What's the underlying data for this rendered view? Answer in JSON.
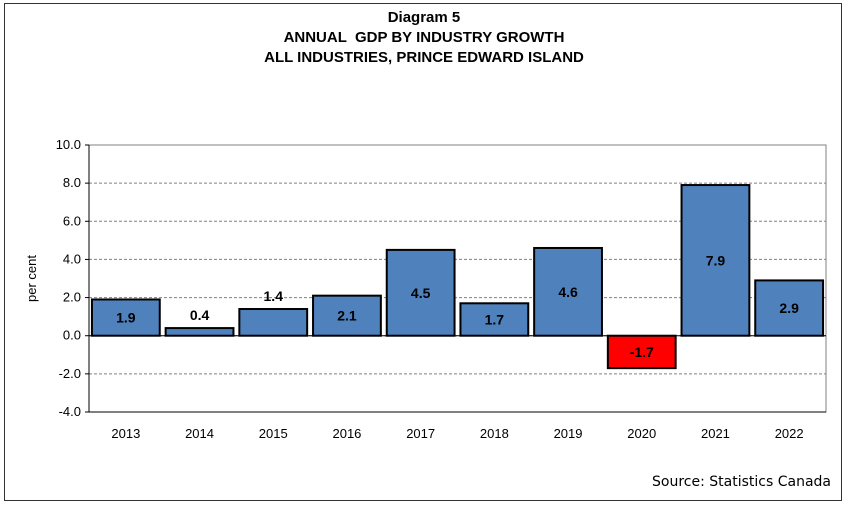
{
  "chart_data": {
    "type": "bar",
    "title_lines": [
      "Diagram 5",
      "ANNUAL  GDP BY INDUSTRY GROWTH",
      "ALL INDUSTRIES, PRINCE EDWARD ISLAND"
    ],
    "ylabel": "per cent",
    "xlabel": "",
    "categories": [
      "2013",
      "2014",
      "2015",
      "2016",
      "2017",
      "2018",
      "2019",
      "2020",
      "2021",
      "2022"
    ],
    "values": [
      1.9,
      0.4,
      1.4,
      2.1,
      4.5,
      1.7,
      4.6,
      -1.7,
      7.9,
      2.9
    ],
    "data_labels": [
      "1.9",
      "0.4",
      "1.4",
      "2.1",
      "4.5",
      "1.7",
      "4.6",
      "-1.7",
      "7.9",
      "2.9"
    ],
    "ylim": [
      -4,
      10
    ],
    "yticks": [
      -4,
      -2,
      0,
      2,
      4,
      6,
      8,
      10
    ],
    "ytick_labels": [
      "-4.0",
      "-2.0",
      "0.0",
      "2.0",
      "4.0",
      "6.0",
      "8.0",
      "10.0"
    ],
    "grid": true,
    "legend": "none",
    "colors": {
      "positive": "#4F81BD",
      "negative": "#FF0000",
      "grid": "#808080",
      "background": "#FFFFFF"
    }
  },
  "footer": {
    "source": "Source: Statistics Canada"
  }
}
